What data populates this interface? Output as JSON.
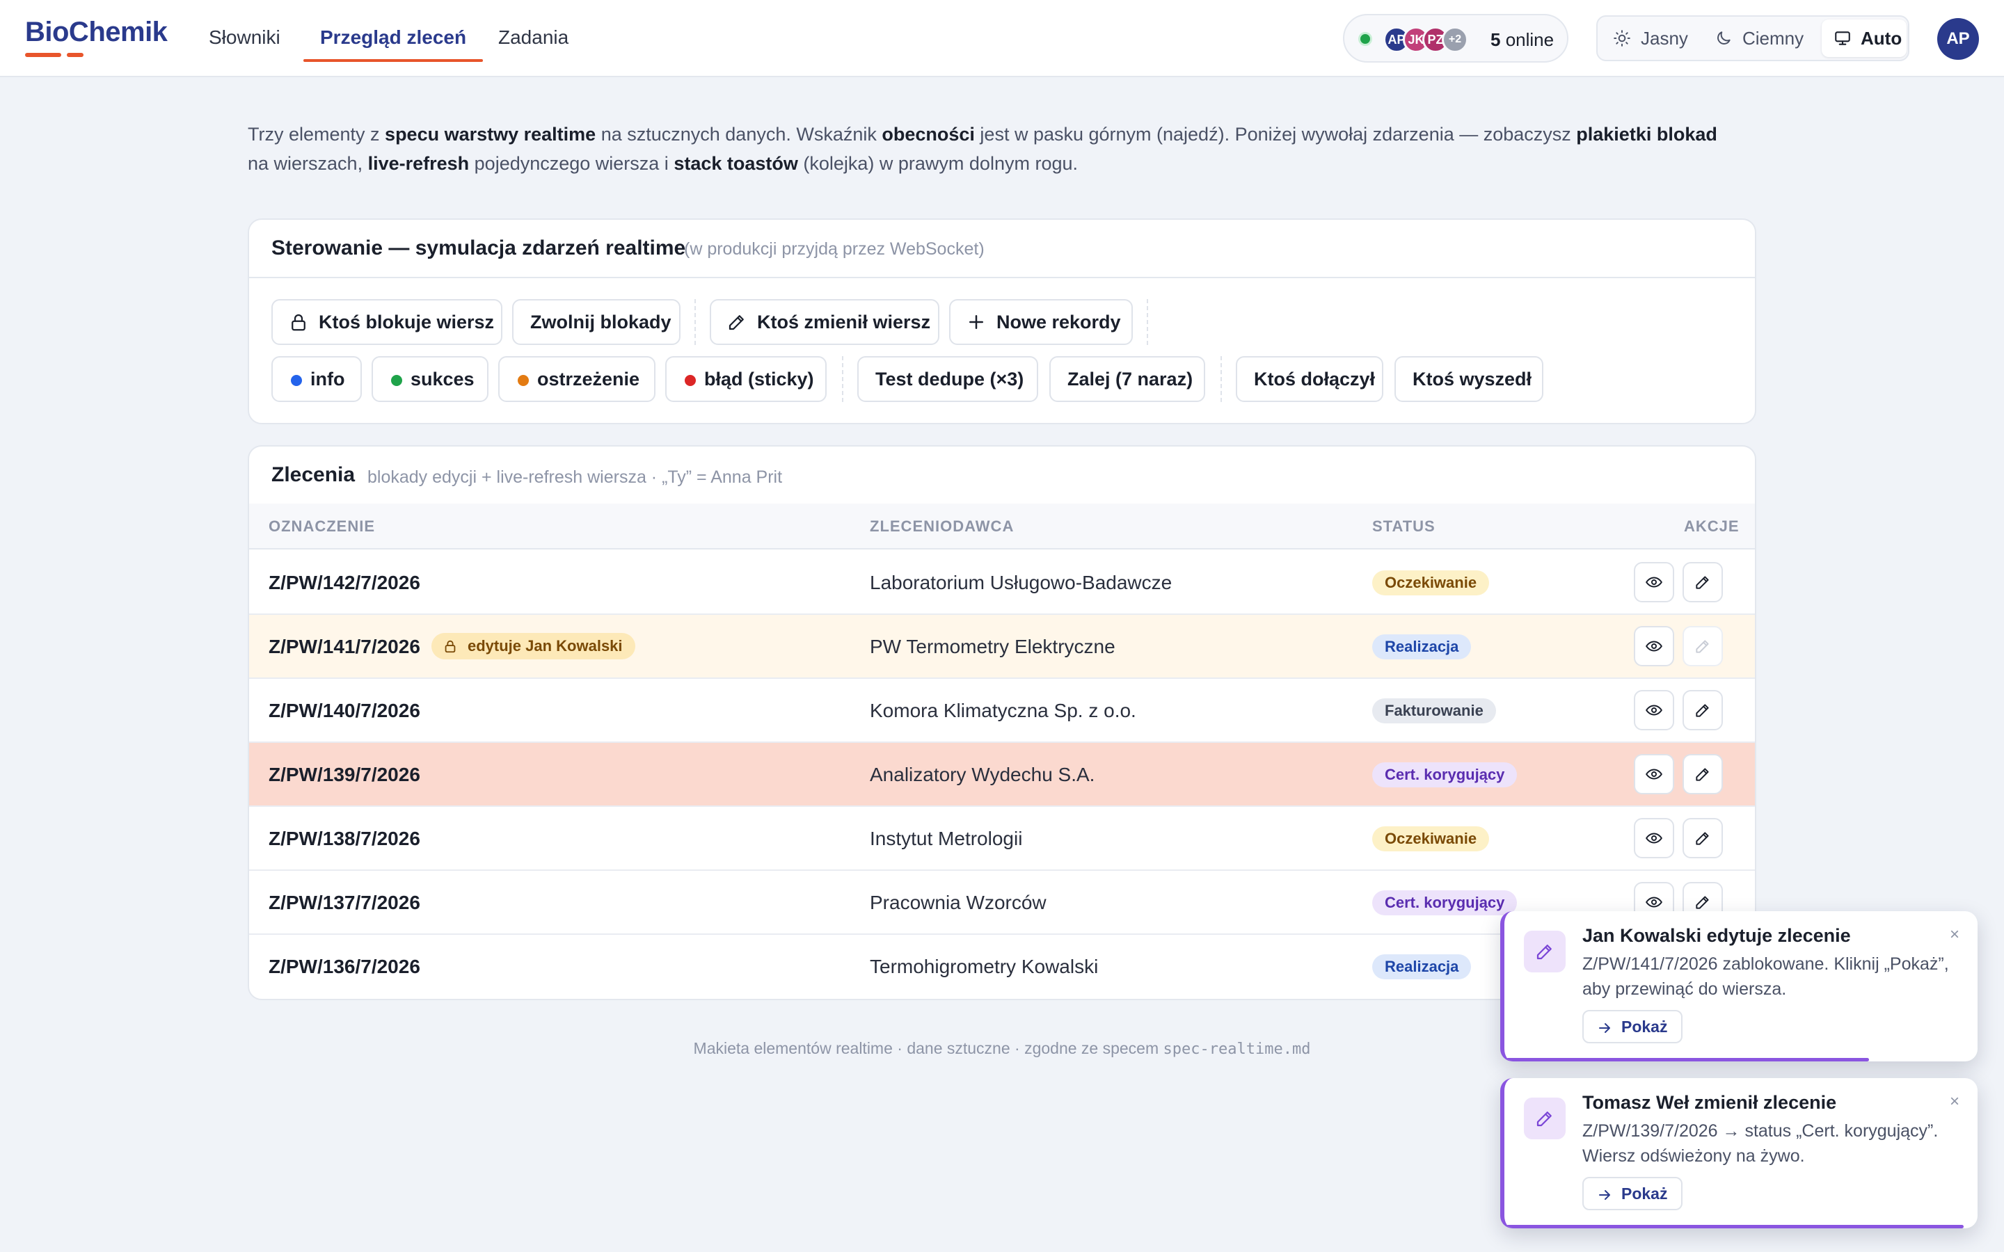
{
  "app": {
    "logo": "BioChemik"
  },
  "nav": [
    {
      "label": "Słowniki",
      "active": false
    },
    {
      "label": "Przegląd zleceń",
      "active": true
    },
    {
      "label": "Zadania",
      "active": false
    }
  ],
  "presence": {
    "avatars": [
      {
        "initials": "AP",
        "color": "#2a3a8c"
      },
      {
        "initials": "JK",
        "color": "#c2407a"
      },
      {
        "initials": "PZ",
        "color": "#b0306a"
      },
      {
        "initials": "+2",
        "color": "#9aa0ae"
      }
    ],
    "count": "5",
    "suffix": "online",
    "status_color": "#1fa34a"
  },
  "theme": {
    "options": [
      {
        "label": "Jasny",
        "icon": "sun-icon"
      },
      {
        "label": "Ciemny",
        "icon": "moon-icon"
      },
      {
        "label": "Auto",
        "icon": "monitor-icon",
        "active": true
      }
    ]
  },
  "user": {
    "initials": "AP"
  },
  "intro": {
    "p1": "Trzy elementy z ",
    "b1": "specu warstwy realtime",
    "p2": " na sztucznych danych. Wskaźnik ",
    "b2": "obecności",
    "p3": " jest w pasku górnym (najedź). Poniżej wywołaj zdarzenia — zobaczysz ",
    "b3": "plakietki blokad",
    "p4": "na wierszach, ",
    "b4": "live-refresh",
    "p5": " pojedynczego wiersza i ",
    "b5": "stack toastów",
    "p6": " (kolejka) w prawym dolnym rogu."
  },
  "controls": {
    "title": "Sterowanie — symulacja zdarzeń realtime",
    "subtitle": "(w produkcji przyjdą przez WebSocket)",
    "row1": [
      {
        "label": "Ktoś blokuje wiersz",
        "icon": "lock-icon"
      },
      {
        "label": "Zwolnij blokady"
      },
      {
        "label": "Ktoś zmienił wiersz",
        "icon": "pencil-icon"
      },
      {
        "label": "Nowe rekordy",
        "icon": "plus-icon"
      }
    ],
    "row2": [
      {
        "label": "info",
        "dot": "#2463eb"
      },
      {
        "label": "sukces",
        "dot": "#1fa34a"
      },
      {
        "label": "ostrzeżenie",
        "dot": "#e37b12"
      },
      {
        "label": "błąd (sticky)",
        "dot": "#dc2626"
      },
      {
        "label": "Test dedupe (×3)"
      },
      {
        "label": "Zalej (7 naraz)"
      },
      {
        "label": "Ktoś dołączył"
      },
      {
        "label": "Ktoś wyszedł"
      }
    ]
  },
  "orders": {
    "title": "Zlecenia",
    "subtitle": "blokady edycji + live-refresh wiersza · „Ty” = Anna Prit",
    "columns": [
      "OZNACZENIE",
      "ZLECENIODAWCA",
      "STATUS",
      "AKCJE"
    ],
    "rows": [
      {
        "id": "Z/PW/142/7/2026",
        "client": "Laboratorium Usługowo-Badawcze",
        "status": "Oczekiwanie",
        "status_kind": "wait"
      },
      {
        "id": "Z/PW/141/7/2026",
        "client": "PW Termometry Elektryczne",
        "status": "Realizacja",
        "status_kind": "real",
        "lock": "edytuje Jan Kowalski"
      },
      {
        "id": "Z/PW/140/7/2026",
        "client": "Komora Klimatyczna Sp. z o.o.",
        "status": "Fakturowanie",
        "status_kind": "fakt"
      },
      {
        "id": "Z/PW/139/7/2026",
        "client": "Analizatory Wydechu S.A.",
        "status": "Cert. korygujący",
        "status_kind": "cert",
        "flash": true
      },
      {
        "id": "Z/PW/138/7/2026",
        "client": "Instytut Metrologii",
        "status": "Oczekiwanie",
        "status_kind": "wait"
      },
      {
        "id": "Z/PW/137/7/2026",
        "client": "Pracownia Wzorców",
        "status": "Cert. korygujący",
        "status_kind": "cert"
      },
      {
        "id": "Z/PW/136/7/2026",
        "client": "Termohigrometry Kowalski",
        "status": "Realizacja",
        "status_kind": "real"
      }
    ]
  },
  "footer": {
    "text": "Makieta elementów realtime · dane sztuczne · zgodne ze specem ",
    "code": "spec-realtime.md"
  },
  "toasts": [
    {
      "title": "Jan Kowalski edytuje zlecenie",
      "body": "Z/PW/141/7/2026 zablokowane. Kliknij „Pokaż”, aby przewinąć do wiersza.",
      "action": "Pokaż",
      "progress": 0.77
    },
    {
      "title": "Tomasz Weł zmienił zlecenie",
      "body": "Z/PW/139/7/2026 → status „Cert. korygujący”. Wiersz odświeżony na żywo.",
      "action": "Pokaż",
      "progress": 0.97
    }
  ],
  "colors": {
    "brand": "#2a3a8c",
    "accent": "#e8552b",
    "toast_accent": "#8a55e0"
  }
}
